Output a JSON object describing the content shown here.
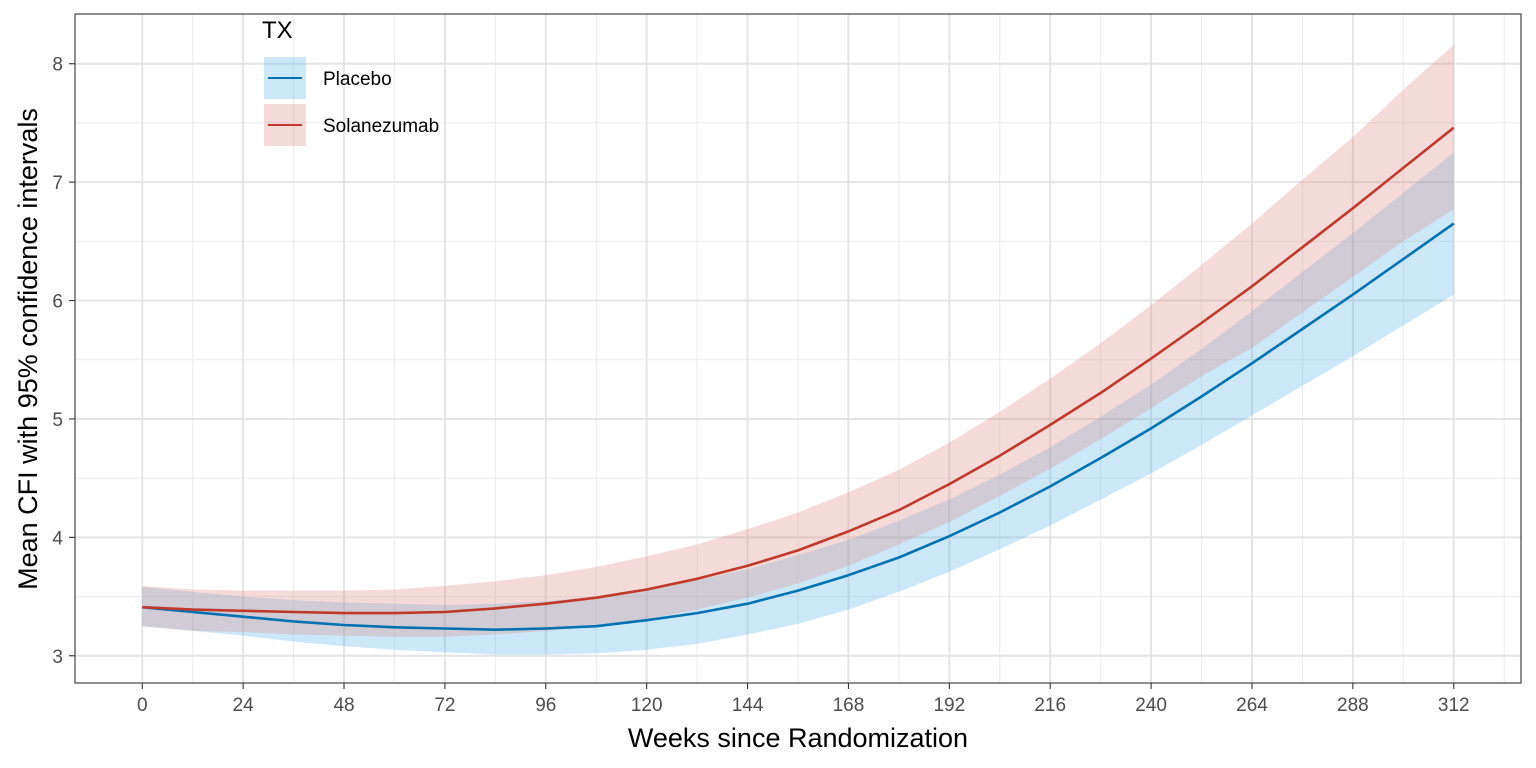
{
  "chart_data": {
    "type": "line",
    "xlabel": "Weeks since Randomization",
    "ylabel": "Mean CFI with 95% confidence intervals",
    "xlim": [
      -16,
      328
    ],
    "ylim": [
      2.77,
      8.42
    ],
    "x_ticks": [
      0,
      24,
      48,
      72,
      96,
      120,
      144,
      168,
      192,
      216,
      240,
      264,
      288,
      312
    ],
    "y_ticks": [
      3,
      4,
      5,
      6,
      7,
      8
    ],
    "grid": true,
    "legend": {
      "title": "TX",
      "position": "top-left"
    },
    "x": [
      0,
      12,
      24,
      36,
      48,
      60,
      72,
      84,
      96,
      108,
      120,
      132,
      144,
      156,
      168,
      180,
      192,
      204,
      216,
      228,
      240,
      252,
      264,
      276,
      288,
      300,
      312
    ],
    "series": [
      {
        "name": "Placebo",
        "color": "#0072B2",
        "fill_color": "#56B4E9",
        "values": [
          3.41,
          3.37,
          3.33,
          3.29,
          3.26,
          3.24,
          3.23,
          3.22,
          3.23,
          3.25,
          3.3,
          3.36,
          3.44,
          3.55,
          3.68,
          3.83,
          4.01,
          4.21,
          4.43,
          4.67,
          4.92,
          5.19,
          5.47,
          5.76,
          6.05,
          6.35,
          6.65
        ],
        "lower": [
          3.25,
          3.21,
          3.17,
          3.12,
          3.08,
          3.05,
          3.03,
          3.01,
          3.01,
          3.02,
          3.05,
          3.1,
          3.18,
          3.27,
          3.39,
          3.54,
          3.71,
          3.9,
          4.1,
          4.32,
          4.54,
          4.78,
          5.03,
          5.28,
          5.53,
          5.79,
          6.05
        ],
        "upper": [
          3.58,
          3.54,
          3.5,
          3.47,
          3.45,
          3.44,
          3.43,
          3.44,
          3.46,
          3.5,
          3.56,
          3.64,
          3.73,
          3.85,
          3.98,
          4.14,
          4.32,
          4.53,
          4.76,
          5.02,
          5.29,
          5.59,
          5.91,
          6.24,
          6.57,
          6.91,
          7.25
        ]
      },
      {
        "name": "Solanezumab",
        "color": "#C0392B",
        "fill_color": "#D98880",
        "values": [
          3.41,
          3.39,
          3.38,
          3.37,
          3.36,
          3.36,
          3.37,
          3.4,
          3.44,
          3.49,
          3.56,
          3.65,
          3.76,
          3.89,
          4.05,
          4.23,
          4.45,
          4.69,
          4.95,
          5.22,
          5.51,
          5.81,
          6.12,
          6.45,
          6.78,
          7.12,
          7.46
        ],
        "lower": [
          3.25,
          3.21,
          3.2,
          3.18,
          3.17,
          3.16,
          3.16,
          3.18,
          3.21,
          3.25,
          3.31,
          3.39,
          3.49,
          3.61,
          3.76,
          3.94,
          4.13,
          4.35,
          4.58,
          4.83,
          5.09,
          5.36,
          5.6,
          5.9,
          6.2,
          6.5,
          6.77
        ],
        "upper": [
          3.59,
          3.56,
          3.55,
          3.55,
          3.55,
          3.56,
          3.59,
          3.63,
          3.68,
          3.75,
          3.84,
          3.94,
          4.07,
          4.21,
          4.38,
          4.57,
          4.8,
          5.06,
          5.34,
          5.64,
          5.96,
          6.3,
          6.65,
          7.02,
          7.38,
          7.78,
          8.16
        ]
      }
    ]
  }
}
